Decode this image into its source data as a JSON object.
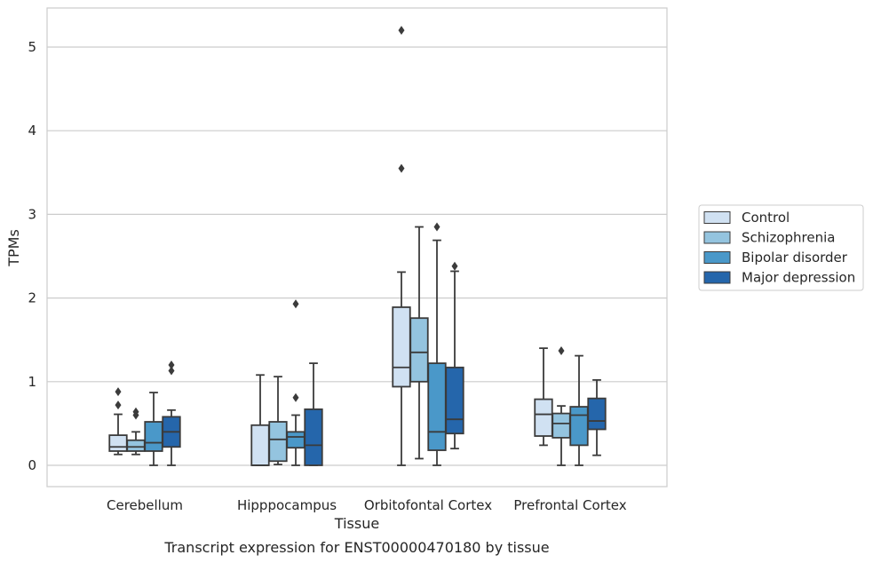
{
  "chart_data": {
    "type": "box",
    "xlabel": "Tissue",
    "ylabel": "TPMs",
    "caption": "Transcript expression for ENST00000470180 by tissue",
    "ylim": [
      -0.25,
      5.48
    ],
    "yticks": [
      0,
      1,
      2,
      3,
      4,
      5
    ],
    "grid": "horizontal",
    "legend_position": "right",
    "categories": [
      "Cerebellum",
      "Hipppocampus",
      "Orbitofontal Cortex",
      "Prefrontal Cortex"
    ],
    "series": [
      {
        "name": "Control",
        "color": "#d0e1f2",
        "boxes": [
          {
            "whislo": 0.13,
            "q1": 0.17,
            "med": 0.22,
            "q3": 0.36,
            "whishi": 0.61,
            "fliers": [
              0.72,
              0.88
            ]
          },
          {
            "whislo": 0.0,
            "q1": 0.0,
            "med": 0.0,
            "q3": 0.48,
            "whishi": 1.08,
            "fliers": []
          },
          {
            "whislo": 0.0,
            "q1": 0.94,
            "med": 1.17,
            "q3": 1.89,
            "whishi": 2.31,
            "fliers": [
              3.55,
              5.2
            ]
          },
          {
            "whislo": 0.24,
            "q1": 0.35,
            "med": 0.61,
            "q3": 0.79,
            "whishi": 1.4,
            "fliers": []
          }
        ]
      },
      {
        "name": "Schizophrenia",
        "color": "#94c4df",
        "boxes": [
          {
            "whislo": 0.13,
            "q1": 0.17,
            "med": 0.22,
            "q3": 0.3,
            "whishi": 0.4,
            "fliers": [
              0.6,
              0.64
            ]
          },
          {
            "whislo": 0.01,
            "q1": 0.05,
            "med": 0.31,
            "q3": 0.52,
            "whishi": 1.06,
            "fliers": []
          },
          {
            "whislo": 0.08,
            "q1": 1.0,
            "med": 1.35,
            "q3": 1.76,
            "whishi": 2.85,
            "fliers": []
          },
          {
            "whislo": 0.0,
            "q1": 0.33,
            "med": 0.5,
            "q3": 0.62,
            "whishi": 0.71,
            "fliers": [
              1.37
            ]
          }
        ]
      },
      {
        "name": "Bipolar disorder",
        "color": "#4a98c9",
        "boxes": [
          {
            "whislo": 0.0,
            "q1": 0.17,
            "med": 0.27,
            "q3": 0.52,
            "whishi": 0.87,
            "fliers": []
          },
          {
            "whislo": 0.0,
            "q1": 0.21,
            "med": 0.34,
            "q3": 0.4,
            "whishi": 0.6,
            "fliers": [
              0.81,
              1.93
            ]
          },
          {
            "whislo": 0.0,
            "q1": 0.18,
            "med": 0.4,
            "q3": 1.22,
            "whishi": 2.69,
            "fliers": [
              2.85
            ]
          },
          {
            "whislo": 0.0,
            "q1": 0.24,
            "med": 0.6,
            "q3": 0.7,
            "whishi": 1.31,
            "fliers": []
          }
        ]
      },
      {
        "name": "Major depression",
        "color": "#2566ab",
        "boxes": [
          {
            "whislo": 0.0,
            "q1": 0.22,
            "med": 0.4,
            "q3": 0.58,
            "whishi": 0.66,
            "fliers": [
              1.13,
              1.2
            ]
          },
          {
            "whislo": 0.0,
            "q1": 0.0,
            "med": 0.24,
            "q3": 0.67,
            "whishi": 1.22,
            "fliers": []
          },
          {
            "whislo": 0.2,
            "q1": 0.38,
            "med": 0.55,
            "q3": 1.17,
            "whishi": 2.32,
            "fliers": [
              2.38
            ]
          },
          {
            "whislo": 0.12,
            "q1": 0.43,
            "med": 0.53,
            "q3": 0.8,
            "whishi": 1.02,
            "fliers": []
          }
        ]
      }
    ]
  }
}
